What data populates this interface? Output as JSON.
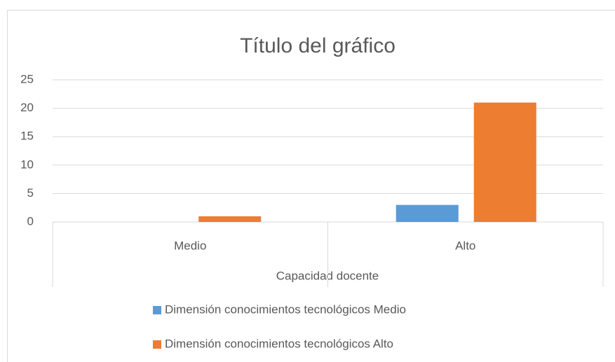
{
  "chart_data": {
    "type": "bar",
    "title": "Título del gráfico",
    "categories": [
      "Medio",
      "Alto"
    ],
    "x_label": "Capacidad docente",
    "series": [
      {
        "name": "Dimensión conocimientos tecnológicos Medio",
        "color": "#5b9bd5",
        "values": [
          0,
          3
        ]
      },
      {
        "name": "Dimensión conocimientos tecnológicos Alto",
        "color": "#ed7d31",
        "values": [
          1,
          21
        ]
      }
    ],
    "ylim": [
      0,
      25
    ],
    "yticks": [
      0,
      5,
      10,
      15,
      20,
      25
    ],
    "grid": true,
    "legend": "bottom"
  }
}
